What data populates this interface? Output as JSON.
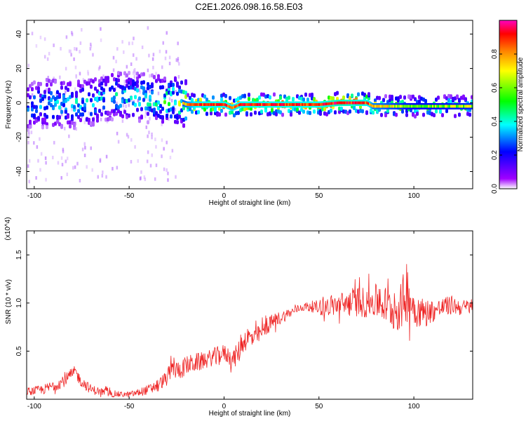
{
  "title": "C2E1.2026.098.16.58.E03",
  "chart_data": [
    {
      "type": "heatmap",
      "name": "spectrogram",
      "xlabel": "Height of straight line (km)",
      "ylabel": "Frequency (Hz)",
      "xlim": [
        -104,
        131
      ],
      "ylim": [
        -50,
        48
      ],
      "x_ticks": [
        -100,
        -50,
        0,
        50,
        100
      ],
      "x_tick_labels": [
        "-100",
        "-50",
        "0",
        "50",
        "100"
      ],
      "y_ticks": [
        -40,
        -20,
        0,
        20,
        40
      ],
      "y_tick_labels": [
        "-40",
        "-20",
        "0",
        "20",
        "40"
      ],
      "colorbar": {
        "label": "Normalized spectral amplitude",
        "range": [
          0,
          1
        ],
        "ticks": [
          0.0,
          0.2,
          0.4,
          0.6,
          0.8
        ],
        "tick_labels": [
          "0.0",
          "0.2",
          "0.4",
          "0.6",
          "0.8"
        ],
        "colors": [
          "#ffffff",
          "#8000ff",
          "#0000ff",
          "#00ffff",
          "#00ff00",
          "#ffff00",
          "#ff8000",
          "#ff0000",
          "#ff00c0"
        ]
      },
      "ridge": {
        "x": [
          -104,
          -90,
          -75,
          -60,
          -45,
          -35,
          -25,
          -20,
          -15,
          0,
          4,
          8,
          30,
          50,
          60,
          75,
          78,
          100,
          131
        ],
        "frequency": [
          -2,
          0,
          -1,
          4,
          3,
          2,
          1,
          -1,
          -1,
          -1,
          -3,
          -1,
          -1,
          -1,
          0,
          0,
          -2,
          -2,
          -2
        ],
        "amplitude": [
          0.35,
          0.4,
          0.4,
          0.4,
          0.45,
          0.5,
          0.55,
          0.7,
          0.85,
          0.85,
          0.8,
          0.85,
          0.85,
          0.85,
          0.9,
          0.85,
          0.7,
          0.55,
          0.6
        ]
      }
    },
    {
      "type": "line",
      "name": "snr",
      "xlabel": "Height of straight line (km)",
      "ylabel": "SNR (10 * v/v)",
      "y_multiplier": "(x10^4)",
      "xlim": [
        -104,
        131
      ],
      "ylim": [
        0,
        1.75
      ],
      "x_ticks": [
        -100,
        -50,
        0,
        50,
        100
      ],
      "x_tick_labels": [
        "-100",
        "-50",
        "0",
        "50",
        "100"
      ],
      "y_ticks": [
        0.5,
        1.0,
        1.5
      ],
      "y_tick_labels": [
        "0.5",
        "1.0",
        "1.5"
      ],
      "color": "#ff0000",
      "series": [
        {
          "name": "SNR (x10^4)",
          "x": [
            -104,
            -95,
            -90,
            -85,
            -80,
            -78,
            -76,
            -70,
            -65,
            -60,
            -55,
            -50,
            -45,
            -40,
            -35,
            -30,
            -27,
            -25,
            -22,
            -20,
            -15,
            -10,
            -5,
            0,
            5,
            8,
            10,
            13,
            15,
            20,
            25,
            30,
            35,
            40,
            45,
            50,
            55,
            60,
            65,
            70,
            75,
            80,
            85,
            90,
            93,
            95,
            96,
            97,
            100,
            105,
            110,
            115,
            120,
            125,
            131
          ],
          "y": [
            0.08,
            0.1,
            0.14,
            0.18,
            0.26,
            0.28,
            0.2,
            0.1,
            0.08,
            0.06,
            0.05,
            0.05,
            0.07,
            0.1,
            0.15,
            0.22,
            0.35,
            0.3,
            0.32,
            0.35,
            0.38,
            0.4,
            0.45,
            0.48,
            0.42,
            0.5,
            0.6,
            0.65,
            0.62,
            0.7,
            0.8,
            0.85,
            0.9,
            0.95,
            0.97,
            0.95,
            0.97,
            0.98,
            1.0,
            1.02,
            1.0,
            1.02,
            0.98,
            0.92,
            0.95,
            1.05,
            1.15,
            1.1,
            0.95,
            0.9,
            0.92,
            0.95,
            0.98,
            0.95,
            0.97
          ],
          "spread": [
            0.04,
            0.05,
            0.06,
            0.06,
            0.07,
            0.07,
            0.06,
            0.05,
            0.04,
            0.04,
            0.03,
            0.03,
            0.04,
            0.05,
            0.06,
            0.08,
            0.12,
            0.1,
            0.1,
            0.1,
            0.1,
            0.09,
            0.09,
            0.09,
            0.1,
            0.12,
            0.12,
            0.12,
            0.1,
            0.09,
            0.08,
            0.07,
            0.05,
            0.04,
            0.05,
            0.08,
            0.1,
            0.12,
            0.14,
            0.16,
            0.16,
            0.18,
            0.2,
            0.22,
            0.25,
            0.3,
            0.35,
            0.3,
            0.2,
            0.15,
            0.12,
            0.1,
            0.1,
            0.08,
            0.08
          ]
        }
      ]
    }
  ]
}
